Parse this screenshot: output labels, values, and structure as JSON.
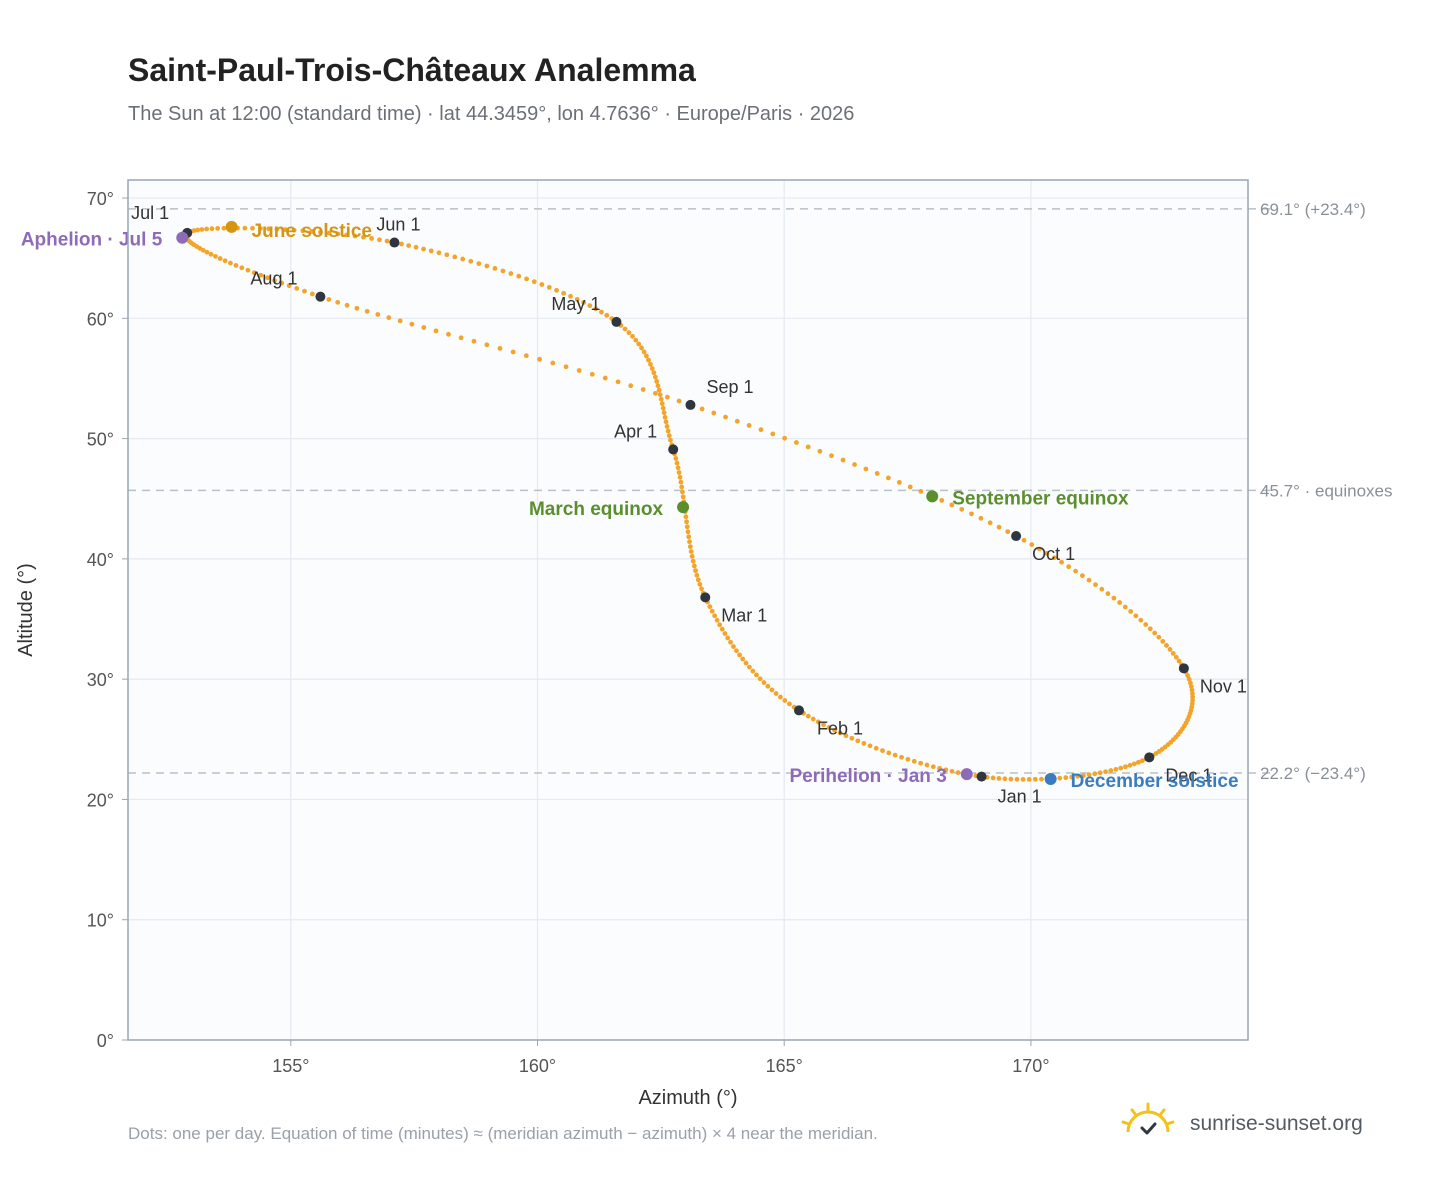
{
  "header": {
    "title": "Saint-Paul-Trois-Châteaux Analemma",
    "subtitle": "The Sun at 12:00 (standard time) · lat 44.3459°, lon 4.7636° · Europe/Paris · 2026"
  },
  "footer": {
    "note": "Dots: one per day. Equation of time (minutes) ≈ (meridian azimuth − azimuth) × 4 near the meridian.",
    "brand": "sunrise-sunset.org"
  },
  "colors": {
    "curve": "#f2a52a",
    "month_marker": "#2f3640",
    "equinox": "#5b8f2e",
    "june_solstice": "#d49612",
    "december_solstice": "#3b7bbf",
    "apsis": "#8e6bb8",
    "plot_bg": "#fafcfe",
    "grid": "#e4eaf0",
    "reference_line": "#b8c0c8"
  },
  "chart_data": {
    "type": "scatter",
    "xlabel": "Azimuth (°)",
    "ylabel": "Altitude (°)",
    "xlim": [
      151.7,
      174.4
    ],
    "ylim": [
      0,
      71.5
    ],
    "x_ticks": [
      155,
      160,
      165,
      170
    ],
    "x_tick_labels": [
      "155°",
      "160°",
      "165°",
      "170°"
    ],
    "y_ticks": [
      0,
      10,
      20,
      30,
      40,
      50,
      60,
      70
    ],
    "y_tick_labels": [
      "0°",
      "10°",
      "20°",
      "30°",
      "40°",
      "50°",
      "60°",
      "70°"
    ],
    "grid": true,
    "reference_lines": [
      {
        "y": 69.1,
        "label": "69.1° (+23.4°)"
      },
      {
        "y": 45.7,
        "label": "45.7° · equinoxes"
      },
      {
        "y": 22.2,
        "label": "22.2° (−23.4°)"
      }
    ],
    "month_markers": [
      {
        "label": "Jan 1",
        "x": 169.0,
        "y": 21.9
      },
      {
        "label": "Feb 1",
        "x": 165.3,
        "y": 27.4
      },
      {
        "label": "Mar 1",
        "x": 163.4,
        "y": 36.8
      },
      {
        "label": "Apr 1",
        "x": 162.75,
        "y": 49.1
      },
      {
        "label": "May 1",
        "x": 161.6,
        "y": 59.7
      },
      {
        "label": "Jun 1",
        "x": 157.1,
        "y": 66.3
      },
      {
        "label": "Jul 1",
        "x": 152.9,
        "y": 67.1
      },
      {
        "label": "Aug 1",
        "x": 155.6,
        "y": 61.8
      },
      {
        "label": "Sep 1",
        "x": 163.1,
        "y": 52.8
      },
      {
        "label": "Oct 1",
        "x": 169.7,
        "y": 41.9
      },
      {
        "label": "Nov 1",
        "x": 173.1,
        "y": 30.9
      },
      {
        "label": "Dec 1",
        "x": 172.4,
        "y": 23.5
      }
    ],
    "events": [
      {
        "label": "March equinox",
        "x": 162.95,
        "y": 44.3,
        "kind": "equinox"
      },
      {
        "label": "September equinox",
        "x": 168.0,
        "y": 45.2,
        "kind": "equinox"
      },
      {
        "label": "June solstice",
        "x": 153.8,
        "y": 67.6,
        "kind": "june_solstice"
      },
      {
        "label": "December solstice",
        "x": 170.4,
        "y": 21.7,
        "kind": "december_solstice"
      },
      {
        "label": "Aphelion · Jul 5",
        "x": 152.8,
        "y": 66.7,
        "kind": "apsis"
      },
      {
        "label": "Perihelion · Jan 3",
        "x": 168.7,
        "y": 22.1,
        "kind": "apsis"
      }
    ]
  }
}
